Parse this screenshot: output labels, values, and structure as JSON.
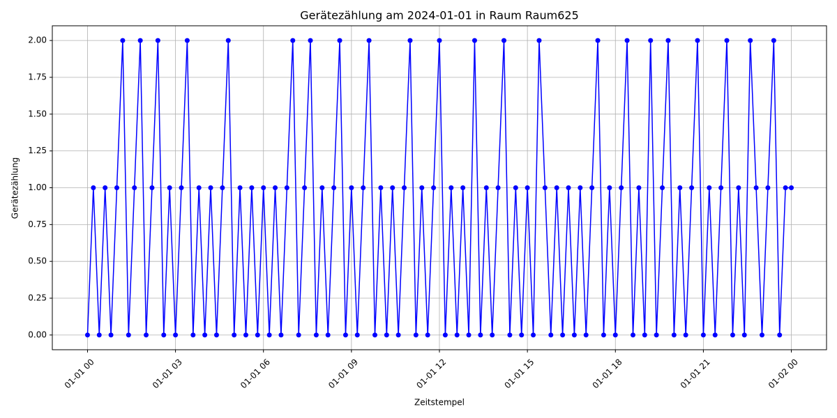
{
  "chart_data": {
    "type": "line",
    "title": "Gerätezählung am 2024-01-01 in Raum Raum625",
    "x_label": "Zeitstempel",
    "y_label": "Gerätezählung",
    "x": [
      0,
      0.2,
      0.4,
      0.6,
      0.8,
      1,
      1.2,
      1.4,
      1.6,
      1.8,
      2,
      2.2,
      2.4,
      2.6,
      2.8,
      3,
      3.2,
      3.4,
      3.6,
      3.8,
      4,
      4.2,
      4.4,
      4.6,
      4.8,
      5,
      5.2,
      5.4,
      5.6,
      5.8,
      6,
      6.2,
      6.4,
      6.6,
      6.8,
      7,
      7.2,
      7.4,
      7.6,
      7.8,
      8,
      8.2,
      8.4,
      8.6,
      8.8,
      9,
      9.2,
      9.4,
      9.6,
      9.8,
      10,
      10.2,
      10.4,
      10.6,
      10.8,
      11,
      11.2,
      11.4,
      11.6,
      11.8,
      12,
      12.2,
      12.4,
      12.6,
      12.8,
      13,
      13.2,
      13.4,
      13.6,
      13.8,
      14,
      14.2,
      14.4,
      14.6,
      14.8,
      15,
      15.2,
      15.4,
      15.6,
      15.8,
      16,
      16.2,
      16.4,
      16.6,
      16.8,
      17,
      17.2,
      17.4,
      17.6,
      17.8,
      18,
      18.2,
      18.4,
      18.6,
      18.8,
      19,
      19.2,
      19.4,
      19.6,
      19.8,
      20,
      20.2,
      20.4,
      20.6,
      20.8,
      21,
      21.2,
      21.4,
      21.6,
      21.8,
      22,
      22.2,
      22.4,
      22.6,
      22.8,
      23,
      23.2,
      23.4,
      23.6,
      23.8,
      24
    ],
    "series": [
      {
        "name": "Gerätezählung",
        "color": "#0000ff",
        "values": [
          0,
          1,
          0,
          1,
          0,
          1,
          2,
          0,
          1,
          2,
          0,
          1,
          2,
          0,
          1,
          0,
          1,
          2,
          0,
          1,
          0,
          1,
          0,
          1,
          2,
          0,
          1,
          0,
          1,
          0,
          1,
          0,
          1,
          0,
          1,
          2,
          0,
          1,
          2,
          0,
          1,
          0,
          1,
          2,
          0,
          1,
          0,
          1,
          2,
          0,
          1,
          0,
          1,
          0,
          1,
          2,
          0,
          1,
          0,
          1,
          2,
          0,
          1,
          0,
          1,
          0,
          2,
          0,
          1,
          0,
          1,
          2,
          0,
          1,
          0,
          1,
          0,
          2,
          1,
          0,
          1,
          0,
          1,
          0,
          1,
          0,
          1,
          2,
          0,
          1,
          0,
          1,
          2,
          0,
          1,
          0,
          2,
          0,
          1,
          2,
          0,
          1,
          0,
          1,
          2,
          0,
          1,
          0,
          1,
          2,
          0,
          1,
          0,
          2,
          1,
          0,
          1,
          2,
          0,
          1,
          1
        ]
      }
    ],
    "xlim": [
      -1.2,
      25.2
    ],
    "xticks": [
      {
        "value": 0,
        "label": "01-01 00"
      },
      {
        "value": 3,
        "label": "01-01 03"
      },
      {
        "value": 6,
        "label": "01-01 06"
      },
      {
        "value": 9,
        "label": "01-01 09"
      },
      {
        "value": 12,
        "label": "01-01 12"
      },
      {
        "value": 15,
        "label": "01-01 15"
      },
      {
        "value": 18,
        "label": "01-01 18"
      },
      {
        "value": 21,
        "label": "01-01 21"
      },
      {
        "value": 24,
        "label": "01-02 00"
      }
    ],
    "ylim": [
      -0.1,
      2.1
    ],
    "yticks": [
      {
        "value": 0,
        "label": "0.00"
      },
      {
        "value": 0.25,
        "label": "0.25"
      },
      {
        "value": 0.5,
        "label": "0.50"
      },
      {
        "value": 0.75,
        "label": "0.75"
      },
      {
        "value": 1,
        "label": "1.00"
      },
      {
        "value": 1.25,
        "label": "1.25"
      },
      {
        "value": 1.5,
        "label": "1.50"
      },
      {
        "value": 1.75,
        "label": "1.75"
      },
      {
        "value": 2,
        "label": "2.00"
      }
    ],
    "grid": true
  }
}
